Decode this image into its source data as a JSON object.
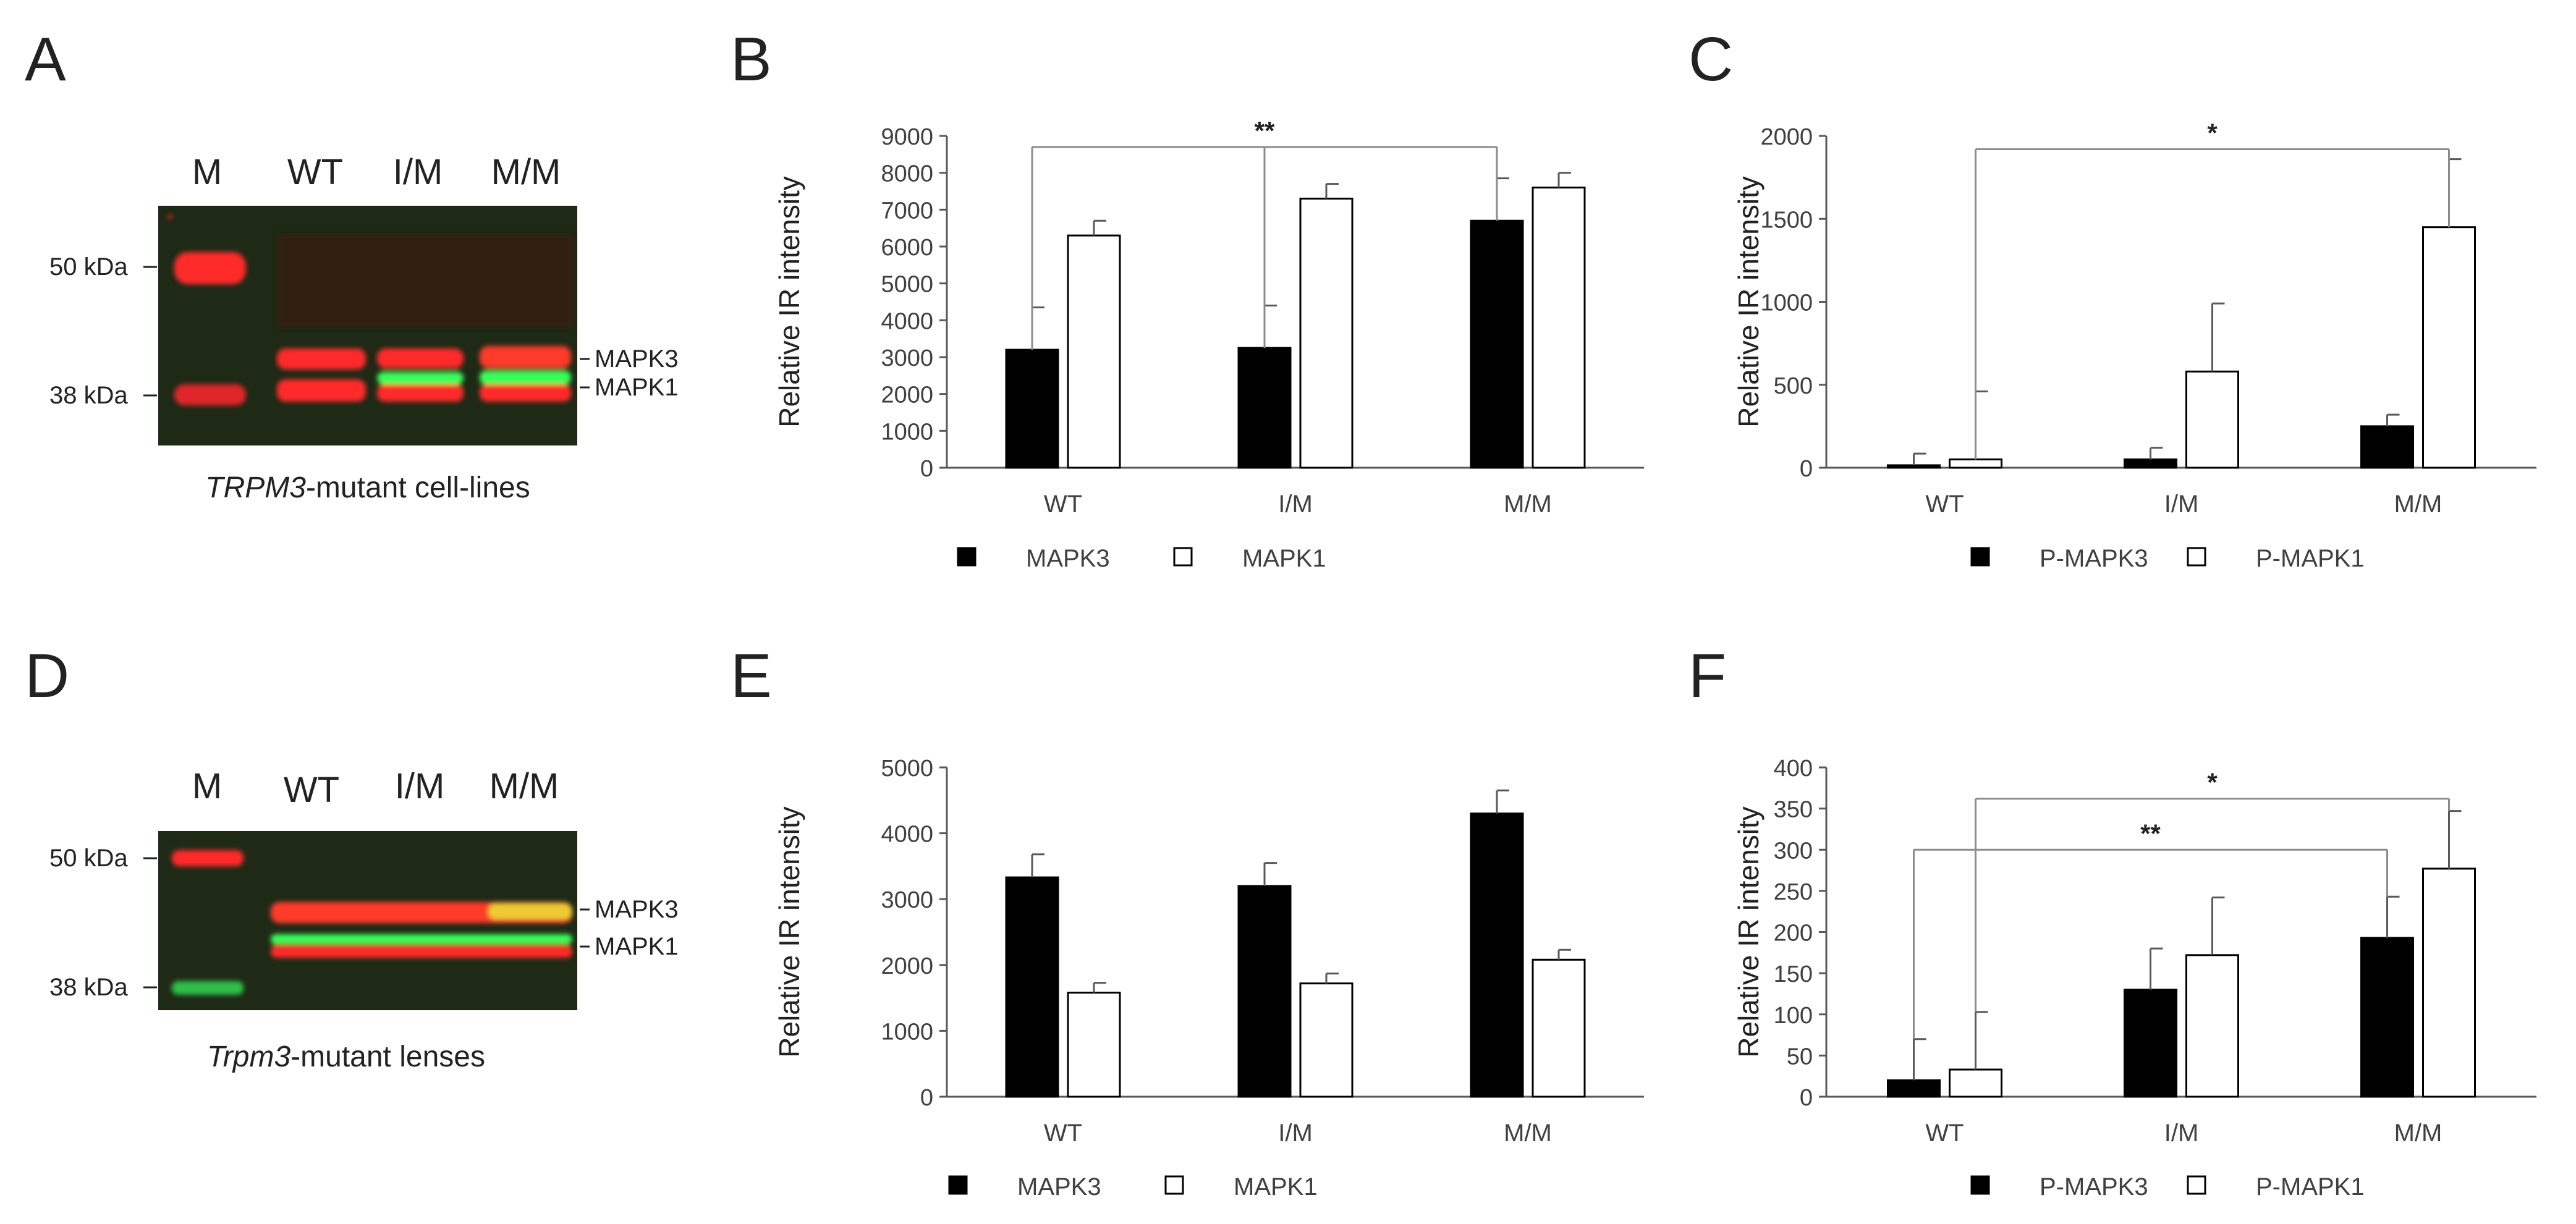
{
  "panels": {
    "A": {
      "letter": "A",
      "lanes": [
        "M",
        "WT",
        "I/M",
        "M/M"
      ],
      "markers": [
        "50 kDa",
        "38 kDa"
      ],
      "bands": [
        "MAPK3",
        "MAPK1"
      ],
      "caption_italic": "TRPM3",
      "caption_rest": "-mutant cell-lines"
    },
    "D": {
      "letter": "D",
      "lanes": [
        "M",
        "WT",
        "I/M",
        "M/M"
      ],
      "markers": [
        "50 kDa",
        "38 kDa"
      ],
      "bands": [
        "MAPK3",
        "MAPK1"
      ],
      "caption_italic": "Trpm3",
      "caption_rest": "-mutant lenses"
    },
    "B": {
      "letter": "B"
    },
    "C": {
      "letter": "C"
    },
    "E": {
      "letter": "E"
    },
    "F": {
      "letter": "F"
    }
  },
  "colors": {
    "red_band": "#ff2a2a",
    "green_band": "#38ff5a",
    "blot_bg": "#1e2a16",
    "bar_dark": "#000000",
    "bar_light": "#ffffff",
    "axis": "#595959"
  },
  "chart_data": [
    {
      "panel": "B",
      "type": "bar",
      "ylabel": "Relative IR intensity",
      "categories": [
        "WT",
        "I/M",
        "M/M"
      ],
      "ylim": [
        0,
        9000
      ],
      "yticks": [
        0,
        1000,
        2000,
        3000,
        4000,
        5000,
        6000,
        7000,
        8000,
        9000
      ],
      "series": [
        {
          "name": "MAPK3",
          "fill": "dark",
          "values": [
            3200,
            3250,
            6700
          ],
          "errors": [
            1150,
            1150,
            1150
          ]
        },
        {
          "name": "MAPK1",
          "fill": "light",
          "values": [
            6300,
            7300,
            7600
          ],
          "errors": [
            400,
            400,
            400
          ]
        }
      ],
      "significance": [
        {
          "label": "**",
          "from": [
            0,
            0
          ],
          "to": [
            2,
            0
          ],
          "level": 8700,
          "anchors": [
            3200,
            3250,
            6700
          ],
          "mid": [
            1,
            0
          ]
        }
      ]
    },
    {
      "panel": "C",
      "type": "bar",
      "ylabel": "Relative IR intensity",
      "categories": [
        "WT",
        "I/M",
        "M/M"
      ],
      "ylim": [
        0,
        2000
      ],
      "yticks": [
        0,
        500,
        1000,
        1500,
        2000
      ],
      "series": [
        {
          "name": "P-MAPK3",
          "fill": "dark",
          "values": [
            15,
            50,
            250
          ],
          "errors": [
            70,
            70,
            70
          ]
        },
        {
          "name": "P-MAPK1",
          "fill": "light",
          "values": [
            50,
            580,
            1450
          ],
          "errors": [
            410,
            410,
            410
          ]
        }
      ],
      "significance": [
        {
          "label": "*",
          "from": [
            0,
            1
          ],
          "to": [
            2,
            1
          ],
          "level": 1920,
          "anchors": [
            50,
            1450
          ]
        }
      ]
    },
    {
      "panel": "E",
      "type": "bar",
      "ylabel": "Relative IR intensity",
      "categories": [
        "WT",
        "I/M",
        "M/M"
      ],
      "ylim": [
        0,
        5000
      ],
      "yticks": [
        0,
        1000,
        2000,
        3000,
        4000,
        5000
      ],
      "series": [
        {
          "name": "MAPK3",
          "fill": "dark",
          "values": [
            3330,
            3200,
            4300
          ],
          "errors": [
            350,
            350,
            350
          ]
        },
        {
          "name": "MAPK1",
          "fill": "light",
          "values": [
            1580,
            1720,
            2080
          ],
          "errors": [
            150,
            150,
            150
          ]
        }
      ],
      "significance": []
    },
    {
      "panel": "F",
      "type": "bar",
      "ylabel": "Relative IR intensity",
      "categories": [
        "WT",
        "I/M",
        "M/M"
      ],
      "ylim": [
        0,
        400
      ],
      "yticks": [
        0,
        50,
        100,
        150,
        200,
        250,
        300,
        350,
        400
      ],
      "series": [
        {
          "name": "P-MAPK3",
          "fill": "dark",
          "values": [
            20,
            130,
            193
          ],
          "errors": [
            50,
            50,
            50
          ]
        },
        {
          "name": "P-MAPK1",
          "fill": "light",
          "values": [
            33,
            172,
            277
          ],
          "errors": [
            70,
            70,
            70
          ]
        }
      ],
      "significance": [
        {
          "label": "*",
          "from": [
            0,
            1
          ],
          "to": [
            2,
            1
          ],
          "level": 362,
          "anchors": [
            103,
            347
          ]
        },
        {
          "label": "**",
          "from": [
            0,
            0
          ],
          "to": [
            2,
            0
          ],
          "level": 300,
          "anchors": [
            70,
            243
          ]
        }
      ]
    }
  ]
}
